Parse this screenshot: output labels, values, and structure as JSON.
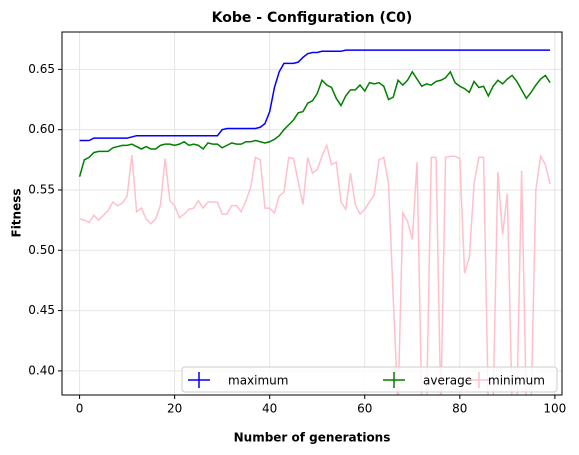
{
  "chart_data": {
    "type": "line",
    "title": "Kobe - Configuration (C0)",
    "x_label": "Number of generations",
    "y_label": "Fitness",
    "x": [
      0,
      1,
      2,
      3,
      4,
      5,
      6,
      7,
      8,
      9,
      10,
      11,
      12,
      13,
      14,
      15,
      16,
      17,
      18,
      19,
      20,
      21,
      22,
      23,
      24,
      25,
      26,
      27,
      28,
      29,
      30,
      31,
      32,
      33,
      34,
      35,
      36,
      37,
      38,
      39,
      40,
      41,
      42,
      43,
      44,
      45,
      46,
      47,
      48,
      49,
      50,
      51,
      52,
      53,
      54,
      55,
      56,
      57,
      58,
      59,
      60,
      61,
      62,
      63,
      64,
      65,
      66,
      67,
      68,
      69,
      70,
      71,
      72,
      73,
      74,
      75,
      76,
      77,
      78,
      79,
      80,
      81,
      82,
      83,
      84,
      85,
      86,
      87,
      88,
      89,
      90,
      91,
      92,
      93,
      94,
      95,
      96,
      97,
      98,
      99
    ],
    "series": [
      {
        "name": "maximum",
        "color": "#0000ff",
        "values": [
          0.591,
          0.591,
          0.591,
          0.593,
          0.593,
          0.593,
          0.593,
          0.593,
          0.593,
          0.593,
          0.593,
          0.594,
          0.595,
          0.595,
          0.595,
          0.595,
          0.595,
          0.595,
          0.595,
          0.595,
          0.595,
          0.595,
          0.595,
          0.595,
          0.595,
          0.595,
          0.595,
          0.595,
          0.595,
          0.595,
          0.6,
          0.601,
          0.601,
          0.601,
          0.601,
          0.601,
          0.601,
          0.601,
          0.602,
          0.605,
          0.615,
          0.635,
          0.648,
          0.655,
          0.655,
          0.655,
          0.656,
          0.66,
          0.663,
          0.664,
          0.664,
          0.665,
          0.665,
          0.665,
          0.665,
          0.665,
          0.666,
          0.666,
          0.666,
          0.666,
          0.666,
          0.666,
          0.666,
          0.666,
          0.666,
          0.666,
          0.666,
          0.666,
          0.666,
          0.666,
          0.666,
          0.666,
          0.666,
          0.666,
          0.666,
          0.666,
          0.666,
          0.666,
          0.666,
          0.666,
          0.666,
          0.666,
          0.666,
          0.666,
          0.666,
          0.666,
          0.666,
          0.666,
          0.666,
          0.666,
          0.666,
          0.666,
          0.666,
          0.666,
          0.666,
          0.666,
          0.666,
          0.666,
          0.666,
          0.666
        ]
      },
      {
        "name": "average",
        "color": "#008000",
        "values": [
          0.561,
          0.575,
          0.577,
          0.581,
          0.582,
          0.582,
          0.582,
          0.585,
          0.586,
          0.587,
          0.587,
          0.588,
          0.586,
          0.584,
          0.586,
          0.584,
          0.584,
          0.587,
          0.588,
          0.588,
          0.587,
          0.588,
          0.59,
          0.587,
          0.588,
          0.587,
          0.584,
          0.589,
          0.588,
          0.588,
          0.585,
          0.587,
          0.589,
          0.588,
          0.588,
          0.59,
          0.59,
          0.591,
          0.59,
          0.589,
          0.59,
          0.592,
          0.595,
          0.6,
          0.604,
          0.608,
          0.614,
          0.615,
          0.622,
          0.624,
          0.63,
          0.641,
          0.637,
          0.635,
          0.626,
          0.62,
          0.628,
          0.633,
          0.633,
          0.637,
          0.632,
          0.639,
          0.638,
          0.639,
          0.636,
          0.625,
          0.627,
          0.641,
          0.637,
          0.641,
          0.648,
          0.642,
          0.636,
          0.638,
          0.637,
          0.64,
          0.641,
          0.643,
          0.648,
          0.639,
          0.636,
          0.634,
          0.631,
          0.64,
          0.635,
          0.636,
          0.628,
          0.636,
          0.641,
          0.638,
          0.642,
          0.645,
          0.64,
          0.633,
          0.626,
          0.631,
          0.637,
          0.642,
          0.645,
          0.639
        ]
      },
      {
        "name": "minimum",
        "color": "#ffc0cb",
        "values": [
          0.526,
          0.525,
          0.523,
          0.529,
          0.525,
          0.529,
          0.533,
          0.54,
          0.537,
          0.539,
          0.545,
          0.579,
          0.532,
          0.535,
          0.526,
          0.522,
          0.526,
          0.537,
          0.576,
          0.541,
          0.537,
          0.527,
          0.53,
          0.534,
          0.535,
          0.541,
          0.535,
          0.54,
          0.54,
          0.54,
          0.53,
          0.53,
          0.537,
          0.537,
          0.532,
          0.541,
          0.552,
          0.577,
          0.575,
          0.535,
          0.535,
          0.531,
          0.545,
          0.548,
          0.577,
          0.576,
          0.557,
          0.538,
          0.577,
          0.564,
          0.567,
          0.578,
          0.587,
          0.571,
          0.573,
          0.54,
          0.534,
          0.564,
          0.538,
          0.53,
          0.534,
          0.54,
          0.546,
          0.575,
          0.577,
          0.555,
          0.46,
          0.37,
          0.531,
          0.524,
          0.509,
          0.573,
          0.37,
          0.37,
          0.577,
          0.577,
          0.37,
          0.577,
          0.578,
          0.578,
          0.576,
          0.481,
          0.494,
          0.555,
          0.577,
          0.577,
          0.37,
          0.37,
          0.565,
          0.513,
          0.547,
          0.37,
          0.37,
          0.566,
          0.37,
          0.37,
          0.55,
          0.578,
          0.571,
          0.555
        ]
      }
    ],
    "xlim": [
      -3.7,
      101.5
    ],
    "ylim": [
      0.38,
      0.681
    ],
    "xticks": [
      0,
      20,
      40,
      60,
      80,
      100
    ],
    "yticks": [
      {
        "value": 0.4,
        "label": "0.40"
      },
      0.45,
      {
        "value": 0.5,
        "label": "0.50"
      },
      0.55,
      {
        "value": 0.6,
        "label": "0.60"
      },
      0.65
    ],
    "grid": true,
    "legend": "lower right"
  }
}
